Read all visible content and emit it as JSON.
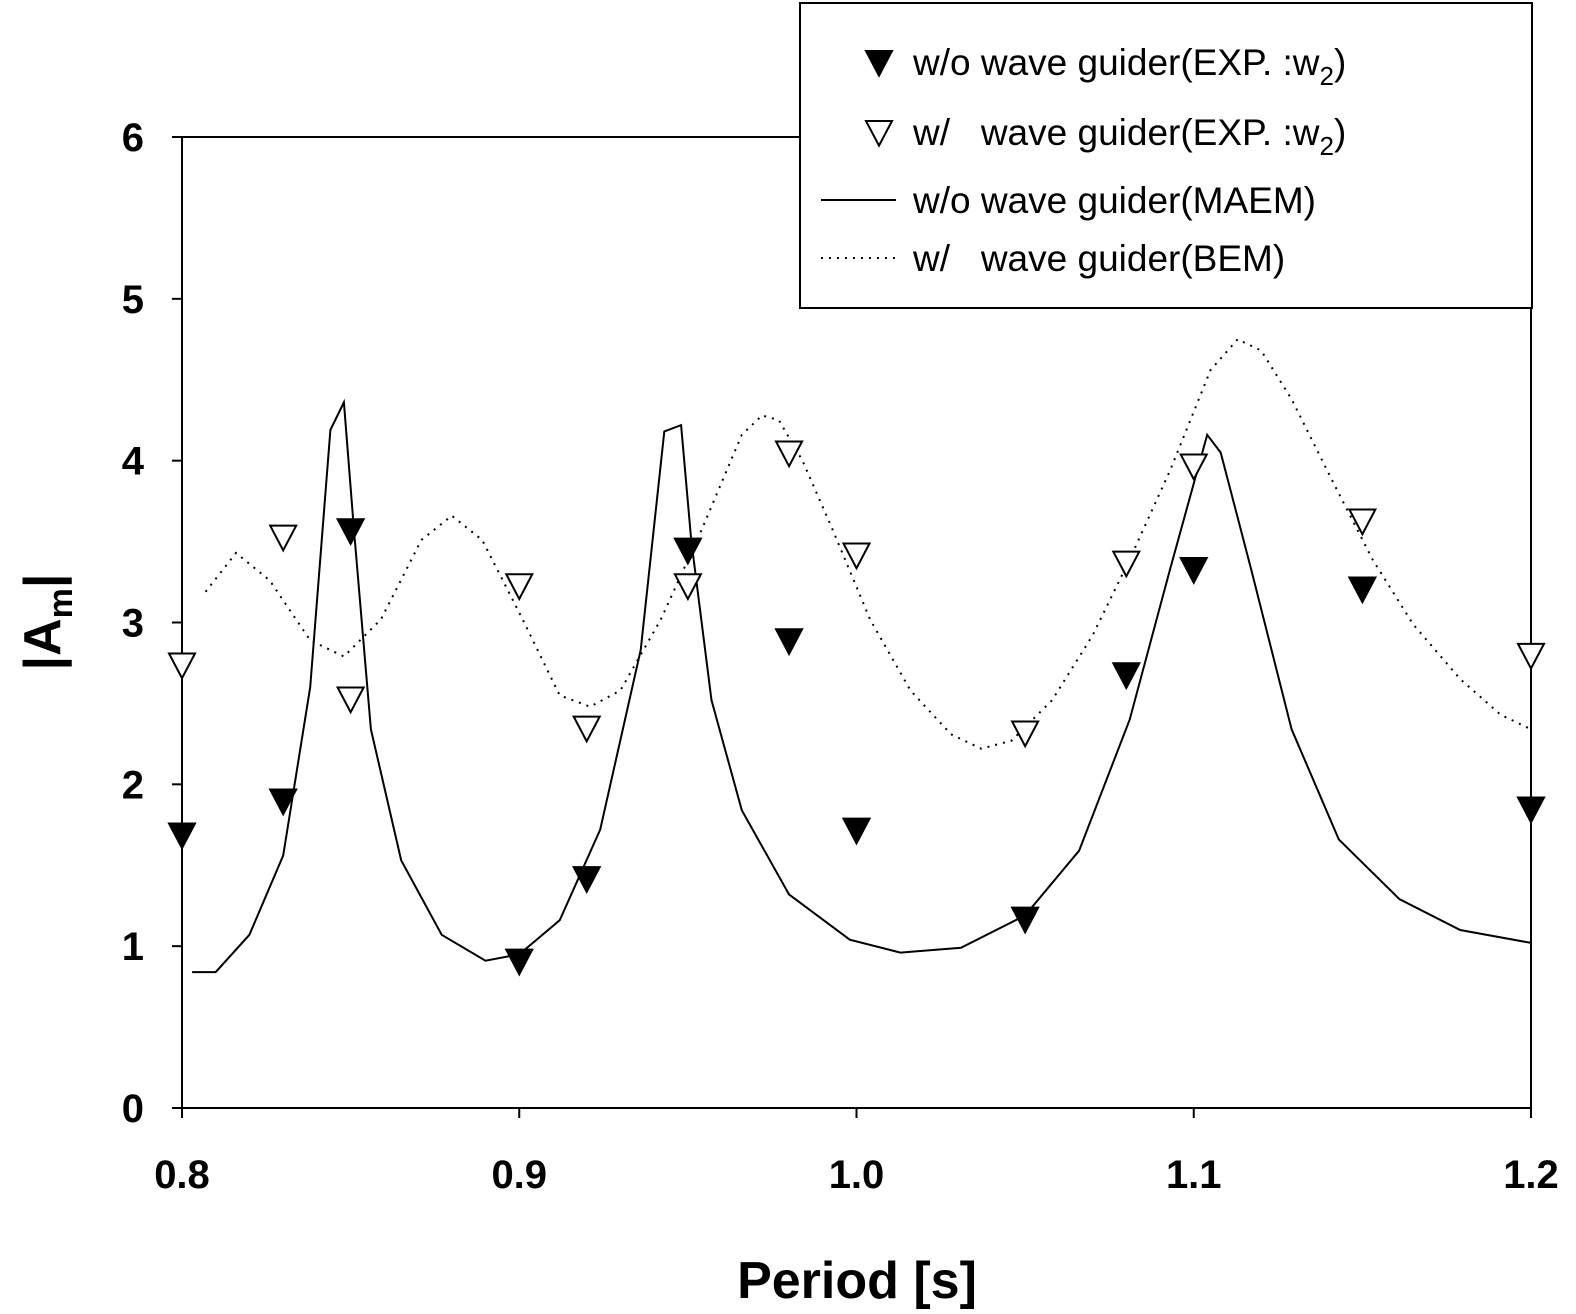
{
  "chart_data": {
    "type": "scatter",
    "title": "",
    "xlabel": "Period [s]",
    "ylabel": {
      "main": "|A",
      "sub": "m",
      "suffix": "|"
    },
    "xlim": [
      0.8,
      1.2
    ],
    "ylim": [
      0,
      6
    ],
    "xticks": [
      "0.8",
      "0.9",
      "1.0",
      "1.1",
      "1.2"
    ],
    "yticks": [
      "0",
      "1",
      "2",
      "3",
      "4",
      "5",
      "6"
    ],
    "grid": false,
    "legend_position": "top-right",
    "series": [
      {
        "name": {
          "main": "w/o wave guider(EXP. :w",
          "sub": "2",
          "suffix": ")"
        },
        "kind": "marker",
        "marker": "filled-down-triangle",
        "color": "#000000",
        "x": [
          0.8,
          0.83,
          0.85,
          0.9,
          0.92,
          0.95,
          0.98,
          1.0,
          1.05,
          1.08,
          1.1,
          1.15,
          1.2
        ],
        "y": [
          1.69,
          1.9,
          3.57,
          0.91,
          1.42,
          3.45,
          2.89,
          1.72,
          1.17,
          2.68,
          3.33,
          3.21,
          1.85
        ]
      },
      {
        "name": {
          "main": "w/   wave guider(EXP. :w",
          "sub": "2",
          "suffix": ")"
        },
        "kind": "marker",
        "marker": "open-down-triangle",
        "color": "#000000",
        "x": [
          0.8,
          0.83,
          0.85,
          0.9,
          0.92,
          0.95,
          0.98,
          1.0,
          1.05,
          1.08,
          1.1,
          1.15,
          1.2
        ],
        "y": [
          2.74,
          3.53,
          2.53,
          3.23,
          2.35,
          3.23,
          4.05,
          3.42,
          2.32,
          3.37,
          3.97,
          3.63,
          2.8
        ]
      },
      {
        "name": {
          "main": "w/o wave guider(MAEM)",
          "sub": "",
          "suffix": ""
        },
        "kind": "line",
        "style": "solid",
        "color": "#000000",
        "x": [
          0.803,
          0.81,
          0.82,
          0.83,
          0.838,
          0.844,
          0.848,
          0.851,
          0.856,
          0.865,
          0.877,
          0.89,
          0.9,
          0.912,
          0.924,
          0.936,
          0.943,
          0.948,
          0.951,
          0.957,
          0.966,
          0.98,
          0.998,
          1.013,
          1.031,
          1.05,
          1.066,
          1.081,
          1.093,
          1.104,
          1.108,
          1.117,
          1.129,
          1.143,
          1.161,
          1.179,
          1.2
        ],
        "y": [
          0.84,
          0.84,
          1.07,
          1.56,
          2.6,
          4.19,
          4.36,
          3.57,
          2.34,
          1.53,
          1.07,
          0.91,
          0.95,
          1.16,
          1.72,
          2.83,
          4.18,
          4.22,
          3.51,
          2.52,
          1.84,
          1.32,
          1.04,
          0.96,
          0.99,
          1.19,
          1.59,
          2.4,
          3.33,
          4.16,
          4.05,
          3.33,
          2.34,
          1.66,
          1.29,
          1.1,
          1.02
        ]
      },
      {
        "name": {
          "main": "w/   wave guider(BEM)",
          "sub": "",
          "suffix": ""
        },
        "kind": "line",
        "style": "dotted",
        "color": "#000000",
        "x": [
          0.807,
          0.816,
          0.826,
          0.838,
          0.848,
          0.859,
          0.871,
          0.88,
          0.889,
          0.901,
          0.912,
          0.921,
          0.93,
          0.942,
          0.954,
          0.966,
          0.972,
          0.977,
          0.984,
          0.993,
          1.004,
          1.016,
          1.028,
          1.037,
          1.046,
          1.058,
          1.07,
          1.081,
          1.093,
          1.105,
          1.113,
          1.12,
          1.129,
          1.141,
          1.153,
          1.165,
          1.179,
          1.191,
          1.2
        ],
        "y": [
          3.19,
          3.43,
          3.26,
          2.89,
          2.79,
          3.02,
          3.51,
          3.66,
          3.51,
          3.02,
          2.55,
          2.48,
          2.58,
          3.02,
          3.57,
          4.16,
          4.28,
          4.25,
          4.0,
          3.57,
          3.02,
          2.58,
          2.31,
          2.22,
          2.27,
          2.52,
          2.92,
          3.39,
          3.94,
          4.56,
          4.75,
          4.68,
          4.38,
          3.88,
          3.39,
          2.99,
          2.65,
          2.43,
          2.34
        ]
      }
    ]
  }
}
